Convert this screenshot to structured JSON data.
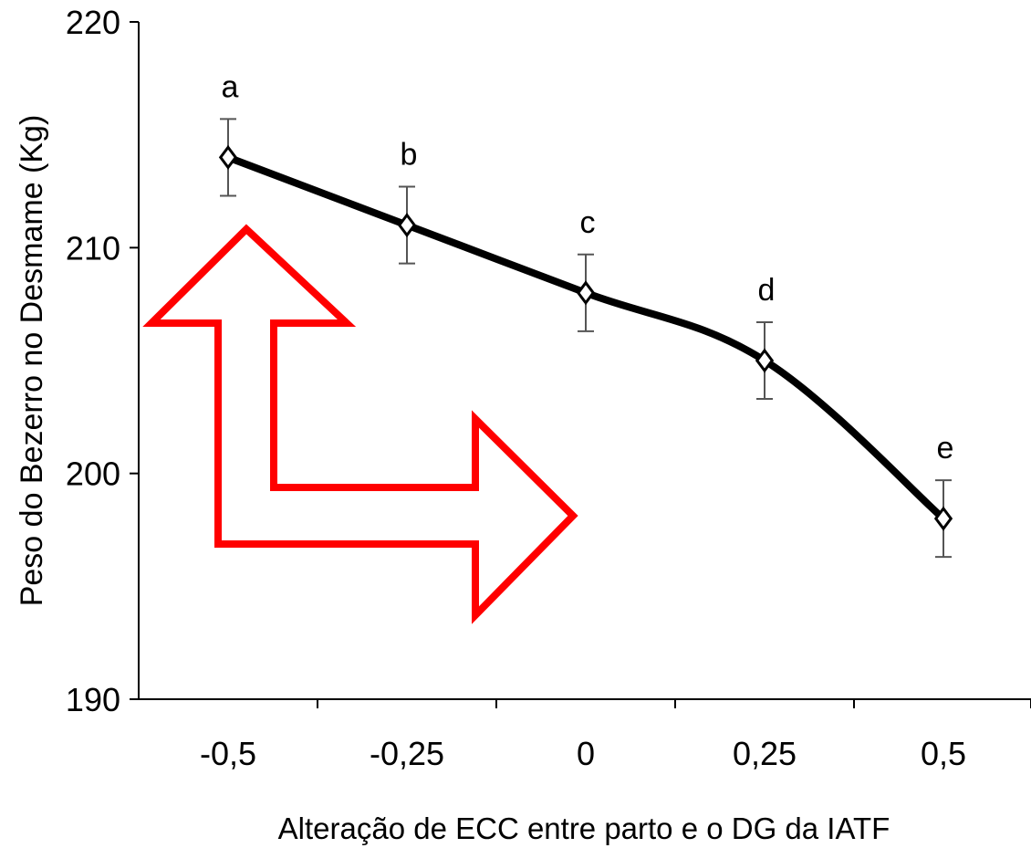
{
  "chart_data": {
    "type": "line",
    "title": "",
    "xlabel": "Alteração de ECC entre parto  e o DG da IATF",
    "ylabel": "Peso do Bezerro no Desmame (Kg)",
    "categories": [
      "-0,5",
      "-0,25",
      "0",
      "0,25",
      "0,5"
    ],
    "series": [
      {
        "values": [
          214,
          211,
          208,
          205,
          198
        ],
        "error": [
          1.7,
          1.7,
          1.7,
          1.7,
          1.7
        ],
        "point_labels": [
          "a",
          "b",
          "c",
          "d",
          "e"
        ]
      }
    ],
    "ylim": [
      190,
      220
    ],
    "yticks": [
      190,
      200,
      210,
      220
    ],
    "grid": false,
    "legend": "none",
    "colors": {
      "line": "#000000",
      "marker_fill": "#ffffff",
      "error_bar": "#555555",
      "annotation_arrow": "#ff0000"
    }
  },
  "annotation": {
    "icon": "red-outline-double-arrow-icon"
  }
}
